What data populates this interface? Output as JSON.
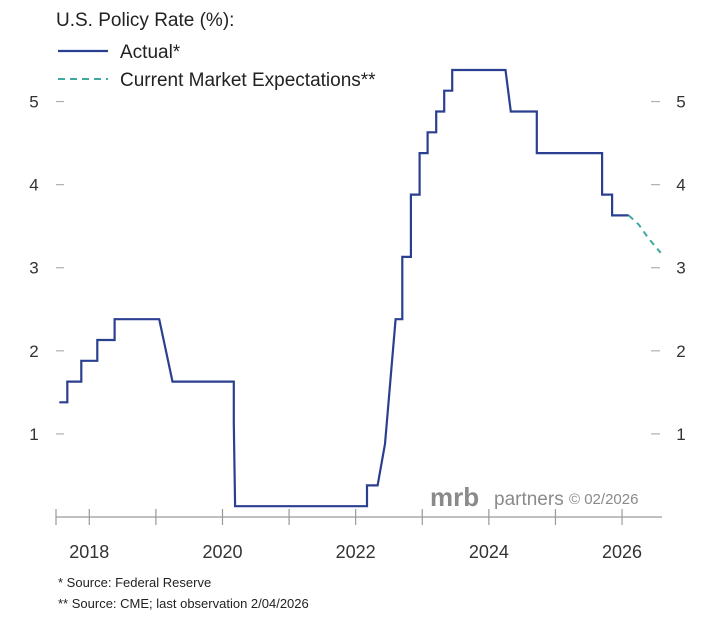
{
  "chart_data": {
    "type": "line",
    "title": "U.S. Policy Rate (%):",
    "ylim": [
      0,
      5.5
    ],
    "xlim": [
      2017.5,
      2026.6
    ],
    "y_ticks": [
      1,
      2,
      3,
      4,
      5
    ],
    "x_ticks": [
      2018,
      2020,
      2022,
      2024,
      2026
    ],
    "series": [
      {
        "name": "Actual*",
        "style": "solid",
        "color": "#2b3f91",
        "x": [
          2017.55,
          2017.67,
          2017.67,
          2017.88,
          2017.88,
          2018.12,
          2018.12,
          2018.38,
          2018.38,
          2018.62,
          2018.62,
          2018.88,
          2018.88,
          2019.05,
          2019.25,
          2019.5,
          2019.5,
          2019.62,
          2019.62,
          2019.82,
          2019.82,
          2020.17,
          2020.17,
          2020.19,
          2020.19,
          2022.17,
          2022.17,
          2022.33,
          2022.33,
          2022.44,
          2022.6,
          2022.7,
          2022.7,
          2022.83,
          2022.83,
          2022.96,
          2022.96,
          2023.08,
          2023.08,
          2023.21,
          2023.21,
          2023.33,
          2023.33,
          2023.45,
          2023.45,
          2023.58,
          2023.58,
          2024.25,
          2024.25,
          2024.33,
          2024.33,
          2024.72,
          2024.72,
          2024.78,
          2024.78,
          2025.7,
          2025.7,
          2025.85,
          2025.85,
          2025.95,
          2025.95,
          2026.1
        ],
        "values": [
          1.38,
          1.38,
          1.63,
          1.63,
          1.88,
          1.88,
          2.13,
          2.13,
          2.38,
          2.38,
          2.38,
          2.38,
          2.38,
          2.38,
          1.63,
          1.63,
          1.63,
          1.63,
          1.63,
          1.63,
          1.63,
          1.63,
          1.13,
          0.13,
          0.13,
          0.13,
          0.38,
          0.38,
          0.38,
          0.88,
          2.38,
          2.38,
          3.13,
          3.13,
          3.88,
          3.88,
          4.38,
          4.38,
          4.63,
          4.63,
          4.88,
          4.88,
          5.13,
          5.13,
          5.38,
          5.38,
          5.38,
          5.38,
          5.38,
          4.88,
          4.88,
          4.88,
          4.38,
          4.38,
          4.38,
          4.38,
          3.88,
          3.88,
          3.63,
          3.63,
          3.63,
          3.63
        ]
      },
      {
        "name": "Current Market Expectations**",
        "style": "dashed",
        "color": "#3fa8a0",
        "x": [
          2026.1,
          2026.25,
          2026.4,
          2026.58
        ],
        "values": [
          3.63,
          3.52,
          3.35,
          3.18
        ]
      }
    ]
  },
  "watermark": {
    "brand": "mrb",
    "word": "partners",
    "copyright": "© 02/2026"
  },
  "footnotes": [
    "*  Source: Federal Reserve",
    "** Source: CME; last observation 2/04/2026"
  ]
}
